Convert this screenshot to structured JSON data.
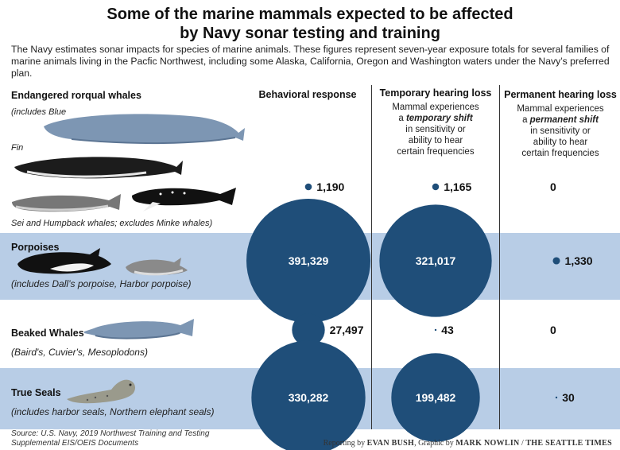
{
  "title_line1": "Some of the marine mammals expected to be affected",
  "title_line2": "by Navy sonar testing and training",
  "intro": "The Navy estimates sonar impacts for species of marine animals. These figures represent seven-year exposure totals for several families of marine animals living in the Pacfic Northwest, including some Alaska, California, Oregon and Washington waters under the Navy’s preferred plan.",
  "columns": {
    "behavioral": {
      "title": "Behavioral response"
    },
    "temporary": {
      "title": "Temporary hearing loss",
      "desc_pre": "Mammal experiences",
      "desc_a": "a ",
      "desc_em": "temporary shift",
      "desc_post1": "in sensitivity or",
      "desc_post2": "ability to hear",
      "desc_post3": "certain frequencies"
    },
    "permanent": {
      "title": "Permanent hearing loss",
      "desc_pre": "Mammal experiences",
      "desc_a": "a ",
      "desc_em": "permanent shift",
      "desc_post1": "in sensitivity or",
      "desc_post2": "ability to hear",
      "desc_post3": "certain frequencies"
    }
  },
  "rows": {
    "rorqual": {
      "title": "Endangered rorqual whales",
      "note_blue": "(includes Blue",
      "note_fin": "Fin",
      "note_sei": "Sei and Humpback whales; excludes Minke whales)"
    },
    "porpoises": {
      "title": "Porpoises",
      "sub": "(includes Dall’s porpoise, Harbor porpoise)"
    },
    "beaked": {
      "title": "Beaked Whales",
      "sub": "(Baird's, Cuvier's, Mesoplodons)"
    },
    "seals": {
      "title": "True Seals",
      "sub": "(includes harbor seals, Northern elephant seals)"
    }
  },
  "chart_data": {
    "type": "bubble",
    "categories": [
      "Endangered rorqual whales",
      "Porpoises",
      "Beaked Whales",
      "True Seals"
    ],
    "series": [
      {
        "name": "Behavioral response",
        "values": [
          1190,
          391329,
          27497,
          330282
        ],
        "labels": [
          "1,190",
          "391,329",
          "27,497",
          "330,282"
        ]
      },
      {
        "name": "Temporary hearing loss",
        "values": [
          1165,
          321017,
          43,
          199482
        ],
        "labels": [
          "1,165",
          "321,017",
          "43",
          "199,482"
        ]
      },
      {
        "name": "Permanent hearing loss",
        "values": [
          0,
          1330,
          0,
          30
        ],
        "labels": [
          "0",
          "1,330",
          "0",
          "30"
        ]
      }
    ],
    "bubble_color": "#1f4e79",
    "band_color": "#b8cde6"
  },
  "source_line1": "Source: U.S. Navy, 2019 Northwest Training and Testing",
  "source_line2": "Supplemental EIS/OEIS Documents",
  "credit_pre": "Reporting by ",
  "credit_reporter": "EVAN BUSH",
  "credit_mid": ", Graphic by ",
  "credit_artist": "MARK NOWLIN",
  "credit_sep": " / ",
  "credit_paper": "THE SEATTLE TIMES"
}
